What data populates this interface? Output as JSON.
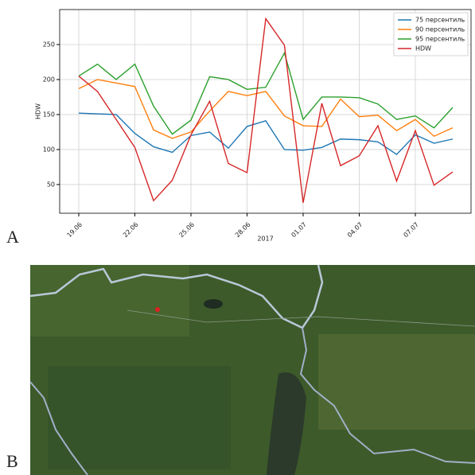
{
  "chart_data": {
    "type": "line",
    "categories": [
      "19.06",
      null,
      null,
      "22.06",
      null,
      null,
      "25.06",
      null,
      null,
      "28.06",
      null,
      null,
      "01.07",
      null,
      null,
      "04.07",
      null,
      null,
      "07.07",
      null,
      null
    ],
    "series": [
      {
        "name": "75 персентиль",
        "color": "#1f77b4",
        "values": [
          152,
          151,
          150,
          123,
          104,
          96,
          120,
          125,
          102,
          133,
          141,
          100,
          99,
          103,
          115,
          114,
          111,
          93,
          121,
          109,
          115
        ]
      },
      {
        "name": "90 персентиль",
        "color": "#ff7f0e",
        "values": [
          187,
          200,
          195,
          190,
          128,
          116,
          125,
          155,
          183,
          177,
          183,
          148,
          134,
          133,
          172,
          147,
          149,
          127,
          143,
          119,
          131
        ]
      },
      {
        "name": "95 персентиль",
        "color": "#2ca02c",
        "values": [
          205,
          222,
          200,
          222,
          162,
          122,
          142,
          204,
          200,
          186,
          189,
          238,
          143,
          175,
          175,
          174,
          165,
          143,
          148,
          131,
          160
        ]
      },
      {
        "name": "HDW",
        "color": "#d62728",
        "values": [
          205,
          183,
          143,
          103,
          27,
          56,
          121,
          169,
          80,
          67,
          287,
          249,
          24,
          166,
          77,
          91,
          134,
          55,
          127,
          49,
          68
        ]
      }
    ],
    "xlabel": "2017",
    "ylabel": "HDW",
    "ylim": [
      9,
      300
    ],
    "yticks": [
      50,
      100,
      150,
      200,
      250
    ],
    "grid": true,
    "legend": "upper right"
  },
  "panel_labels": [
    "A",
    "B"
  ]
}
